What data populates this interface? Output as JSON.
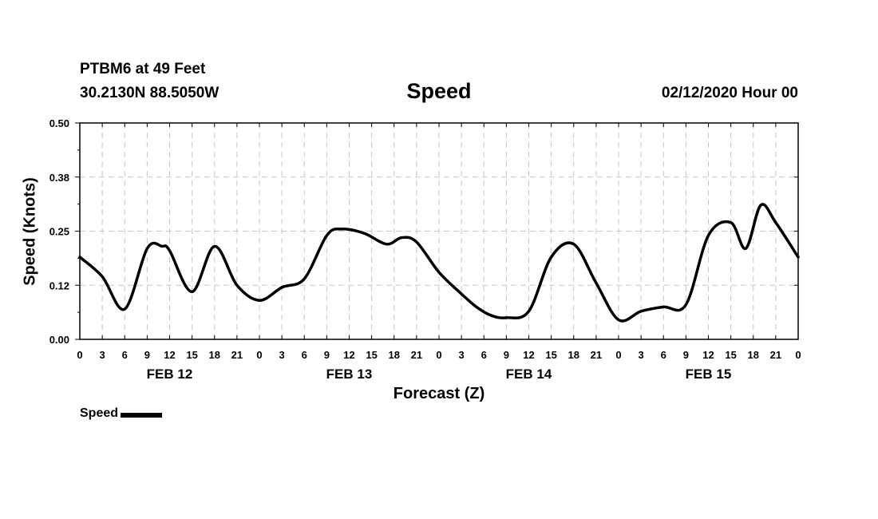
{
  "header": {
    "station": "PTBM6 at 49 Feet",
    "coords": "30.2130N 88.5050W",
    "title": "Speed",
    "datetime": "02/12/2020 Hour 00"
  },
  "chart_data": {
    "type": "line",
    "title": "Speed",
    "xlabel": "Forecast (Z)",
    "ylabel": "Speed (Knots)",
    "ylim": [
      0,
      0.5
    ],
    "yticks": [
      "0.00",
      "0.12",
      "0.25",
      "0.38",
      "0.50"
    ],
    "xlim": [
      0,
      96
    ],
    "xticks": [
      "0",
      "3",
      "6",
      "9",
      "12",
      "15",
      "18",
      "21",
      "0",
      "3",
      "6",
      "9",
      "12",
      "15",
      "18",
      "21",
      "0",
      "3",
      "6",
      "9",
      "12",
      "15",
      "18",
      "21",
      "0",
      "3",
      "6",
      "9",
      "12",
      "15",
      "18",
      "21",
      "0"
    ],
    "day_labels": [
      "FEB 12",
      "FEB 13",
      "FEB 14",
      "FEB 15"
    ],
    "grid": true,
    "legend": "bottom-left",
    "series": [
      {
        "name": "Speed",
        "color": "#000000",
        "x": [
          0,
          3,
          6,
          9,
          11,
          12,
          15,
          18,
          21,
          24,
          27,
          30,
          33,
          35,
          38,
          41,
          43,
          45,
          48,
          51,
          53,
          55,
          57,
          60,
          63,
          66,
          69,
          72,
          75,
          78,
          81,
          84,
          87,
          89,
          91,
          93,
          96
        ],
        "y": [
          0.19,
          0.145,
          0.07,
          0.21,
          0.215,
          0.205,
          0.11,
          0.215,
          0.125,
          0.09,
          0.12,
          0.14,
          0.24,
          0.255,
          0.245,
          0.22,
          0.235,
          0.225,
          0.155,
          0.105,
          0.075,
          0.055,
          0.05,
          0.065,
          0.19,
          0.22,
          0.13,
          0.045,
          0.065,
          0.075,
          0.08,
          0.24,
          0.27,
          0.21,
          0.31,
          0.27,
          0.19
        ]
      }
    ]
  },
  "legend": {
    "label": "Speed"
  }
}
